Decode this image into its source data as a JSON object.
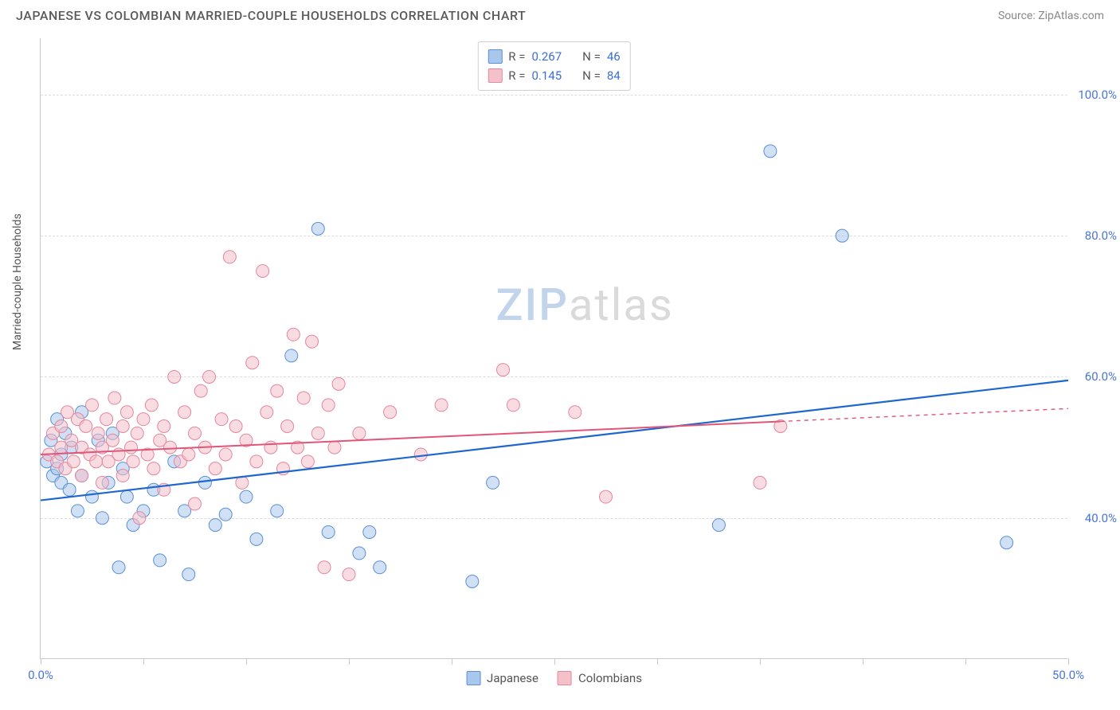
{
  "header": {
    "title": "JAPANESE VS COLOMBIAN MARRIED-COUPLE HOUSEHOLDS CORRELATION CHART",
    "source": "Source: ZipAtlas.com"
  },
  "chart": {
    "type": "scatter",
    "ylabel": "Married-couple Households",
    "xlim": [
      0,
      50
    ],
    "ylim": [
      20,
      108
    ],
    "x_ticks": [
      0,
      5,
      10,
      15,
      20,
      25,
      30,
      35,
      40,
      45,
      50
    ],
    "x_tick_labels": {
      "0": "0.0%",
      "50": "50.0%"
    },
    "y_gridlines": [
      40,
      60,
      80,
      100
    ],
    "y_tick_labels": {
      "40": "40.0%",
      "60": "60.0%",
      "80": "80.0%",
      "100": "100.0%"
    },
    "background_color": "#ffffff",
    "grid_color": "#dcdcdc",
    "axis_color": "#c8c8c8",
    "marker_radius": 8,
    "marker_opacity": 0.55,
    "series": [
      {
        "name": "Japanese",
        "color_fill": "#a9c6ec",
        "color_stroke": "#5b8fd6",
        "R": "0.267",
        "N": "46",
        "trend": {
          "x1": 0,
          "y1": 42.5,
          "x2": 50,
          "y2": 59.5,
          "color": "#1e66d0",
          "width": 2.2,
          "solid_until_x": 50
        },
        "points": [
          [
            0.3,
            48
          ],
          [
            0.5,
            51
          ],
          [
            0.6,
            46
          ],
          [
            0.8,
            47
          ],
          [
            0.8,
            54
          ],
          [
            1.0,
            49
          ],
          [
            1.0,
            45
          ],
          [
            1.2,
            52
          ],
          [
            1.4,
            44
          ],
          [
            1.5,
            50
          ],
          [
            1.8,
            41
          ],
          [
            2.0,
            46
          ],
          [
            2.0,
            55
          ],
          [
            2.5,
            43
          ],
          [
            2.8,
            51
          ],
          [
            3.0,
            40
          ],
          [
            3.3,
            45
          ],
          [
            3.5,
            52
          ],
          [
            3.8,
            33
          ],
          [
            4.0,
            47
          ],
          [
            4.2,
            43
          ],
          [
            4.5,
            39
          ],
          [
            5.0,
            41
          ],
          [
            5.5,
            44
          ],
          [
            5.8,
            34
          ],
          [
            6.5,
            48
          ],
          [
            7.0,
            41
          ],
          [
            7.2,
            32
          ],
          [
            8.0,
            45
          ],
          [
            8.5,
            39
          ],
          [
            9.0,
            40.5
          ],
          [
            10.0,
            43
          ],
          [
            10.5,
            37
          ],
          [
            11.5,
            41
          ],
          [
            12.2,
            63
          ],
          [
            13.5,
            81
          ],
          [
            14.0,
            38
          ],
          [
            15.5,
            35
          ],
          [
            16.0,
            38
          ],
          [
            16.5,
            33
          ],
          [
            21.0,
            31
          ],
          [
            22.0,
            45
          ],
          [
            33.0,
            39
          ],
          [
            35.5,
            92
          ],
          [
            39.0,
            80
          ],
          [
            47.0,
            36.5
          ]
        ]
      },
      {
        "name": "Colombians",
        "color_fill": "#f4c0ca",
        "color_stroke": "#e4869d",
        "R": "0.145",
        "N": "84",
        "trend": {
          "x1": 0,
          "y1": 49,
          "x2": 50,
          "y2": 55.5,
          "color": "#e25578",
          "width": 2.0,
          "solid_until_x": 36
        },
        "points": [
          [
            0.4,
            49
          ],
          [
            0.6,
            52
          ],
          [
            0.8,
            48
          ],
          [
            1.0,
            53
          ],
          [
            1.0,
            50
          ],
          [
            1.2,
            47
          ],
          [
            1.3,
            55
          ],
          [
            1.5,
            51
          ],
          [
            1.6,
            48
          ],
          [
            1.8,
            54
          ],
          [
            2.0,
            50
          ],
          [
            2.0,
            46
          ],
          [
            2.2,
            53
          ],
          [
            2.4,
            49
          ],
          [
            2.5,
            56
          ],
          [
            2.7,
            48
          ],
          [
            2.8,
            52
          ],
          [
            3.0,
            50
          ],
          [
            3.0,
            45
          ],
          [
            3.2,
            54
          ],
          [
            3.3,
            48
          ],
          [
            3.5,
            51
          ],
          [
            3.6,
            57
          ],
          [
            3.8,
            49
          ],
          [
            4.0,
            53
          ],
          [
            4.0,
            46
          ],
          [
            4.2,
            55
          ],
          [
            4.4,
            50
          ],
          [
            4.5,
            48
          ],
          [
            4.7,
            52
          ],
          [
            4.8,
            40
          ],
          [
            5.0,
            54
          ],
          [
            5.2,
            49
          ],
          [
            5.4,
            56
          ],
          [
            5.5,
            47
          ],
          [
            5.8,
            51
          ],
          [
            6.0,
            53
          ],
          [
            6.0,
            44
          ],
          [
            6.3,
            50
          ],
          [
            6.5,
            60
          ],
          [
            6.8,
            48
          ],
          [
            7.0,
            55
          ],
          [
            7.2,
            49
          ],
          [
            7.5,
            52
          ],
          [
            7.5,
            42
          ],
          [
            7.8,
            58
          ],
          [
            8.0,
            50
          ],
          [
            8.2,
            60
          ],
          [
            8.5,
            47
          ],
          [
            8.8,
            54
          ],
          [
            9.0,
            49
          ],
          [
            9.2,
            77
          ],
          [
            9.5,
            53
          ],
          [
            9.8,
            45
          ],
          [
            10.0,
            51
          ],
          [
            10.3,
            62
          ],
          [
            10.5,
            48
          ],
          [
            10.8,
            75
          ],
          [
            11.0,
            55
          ],
          [
            11.2,
            50
          ],
          [
            11.5,
            58
          ],
          [
            11.8,
            47
          ],
          [
            12.0,
            53
          ],
          [
            12.3,
            66
          ],
          [
            12.5,
            50
          ],
          [
            12.8,
            57
          ],
          [
            13.0,
            48
          ],
          [
            13.2,
            65
          ],
          [
            13.5,
            52
          ],
          [
            13.8,
            33
          ],
          [
            14.0,
            56
          ],
          [
            14.3,
            50
          ],
          [
            14.5,
            59
          ],
          [
            15.0,
            32
          ],
          [
            15.5,
            52
          ],
          [
            17.0,
            55
          ],
          [
            18.5,
            49
          ],
          [
            19.5,
            56
          ],
          [
            22.5,
            61
          ],
          [
            23.0,
            56
          ],
          [
            26.0,
            55
          ],
          [
            27.5,
            43
          ],
          [
            35.0,
            45
          ],
          [
            36.0,
            53
          ]
        ]
      }
    ],
    "legend_top": {
      "rows": [
        {
          "swatch": 0,
          "r_label": "R =",
          "r_val": "0.267",
          "n_label": "N =",
          "n_val": "46"
        },
        {
          "swatch": 1,
          "r_label": "R =",
          "r_val": "0.145",
          "n_label": "N =",
          "n_val": "84"
        }
      ]
    },
    "legend_bottom": [
      {
        "swatch": 0,
        "label": "Japanese"
      },
      {
        "swatch": 1,
        "label": "Colombians"
      }
    ],
    "watermark": {
      "zip": "ZIP",
      "atlas": "atlas"
    }
  }
}
